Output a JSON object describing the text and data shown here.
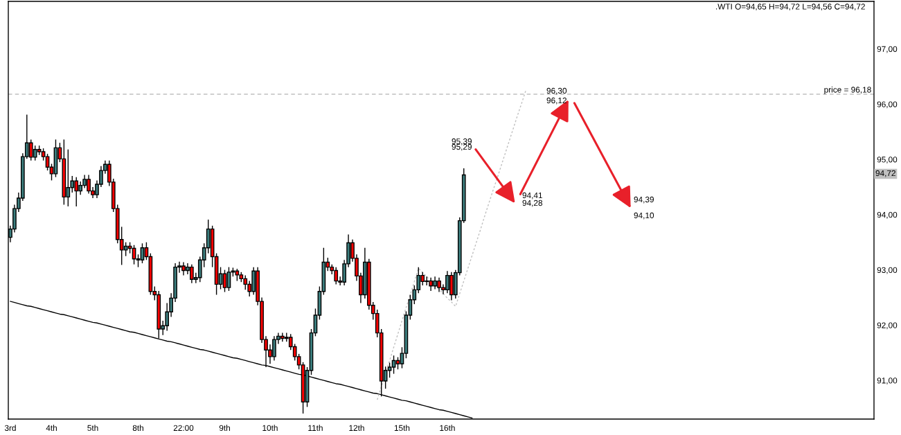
{
  "chart_data": {
    "type": "candlestick",
    "categories": [
      "3rd",
      null,
      null,
      null,
      null,
      null,
      null,
      null,
      null,
      null,
      "4th",
      null,
      null,
      null,
      null,
      null,
      null,
      null,
      null,
      null,
      "5th",
      null,
      null,
      null,
      null,
      null,
      null,
      null,
      null,
      null,
      null,
      "8th",
      null,
      null,
      null,
      null,
      null,
      null,
      null,
      null,
      null,
      null,
      "22:00",
      null,
      null,
      null,
      null,
      null,
      null,
      null,
      null,
      null,
      "9th",
      null,
      null,
      null,
      null,
      null,
      null,
      null,
      null,
      null,
      null,
      "10th",
      null,
      null,
      null,
      null,
      null,
      null,
      null,
      null,
      null,
      null,
      "11th",
      null,
      null,
      null,
      null,
      null,
      null,
      null,
      null,
      null,
      "12th",
      null,
      null,
      null,
      null,
      null,
      null,
      null,
      null,
      null,
      null,
      "15th",
      null,
      null,
      null,
      null,
      null,
      null,
      null,
      null,
      null,
      null,
      "16th",
      null,
      null,
      null,
      null,
      null,
      null,
      null,
      null,
      null,
      null,
      null,
      null,
      null,
      null,
      null,
      null,
      null,
      null,
      null,
      null,
      null,
      null,
      null,
      null,
      null,
      null,
      null,
      null,
      null,
      null,
      null,
      null,
      null,
      null,
      null,
      null,
      null,
      null,
      null,
      null,
      null,
      null,
      null,
      null,
      null,
      null,
      null,
      null,
      null,
      null,
      null,
      null,
      null,
      null,
      null,
      null,
      null,
      null,
      null,
      null,
      null,
      null,
      null,
      null,
      null,
      null,
      null,
      null,
      null,
      null,
      null,
      null,
      null,
      null,
      null,
      null,
      null,
      null,
      null,
      null,
      null,
      null,
      null,
      null,
      null,
      null,
      null,
      null,
      null,
      null,
      null,
      null,
      null,
      null,
      null,
      null,
      null,
      null,
      null,
      null,
      null,
      null,
      null
    ],
    "ohlc": [
      [
        93.59,
        93.8,
        93.5,
        93.74
      ],
      [
        93.74,
        94.18,
        93.68,
        94.11
      ],
      [
        94.11,
        94.4,
        94.05,
        94.3
      ],
      [
        94.3,
        95.11,
        94.25,
        95.05
      ],
      [
        95.05,
        95.81,
        95.01,
        95.3
      ],
      [
        95.3,
        95.36,
        94.98,
        95.04
      ],
      [
        95.04,
        95.25,
        94.98,
        95.18
      ],
      [
        95.18,
        95.25,
        95.08,
        95.14
      ],
      [
        95.14,
        95.2,
        94.98,
        95.05
      ],
      [
        95.05,
        95.1,
        94.8,
        94.86
      ],
      [
        94.86,
        94.92,
        94.62,
        94.74
      ],
      [
        94.74,
        95.36,
        94.68,
        95.21
      ],
      [
        95.21,
        95.3,
        94.95,
        95.01
      ],
      [
        95.01,
        95.36,
        94.18,
        94.32
      ],
      [
        94.32,
        95.18,
        94.15,
        94.49
      ],
      [
        94.49,
        94.7,
        94.4,
        94.61
      ],
      [
        94.61,
        94.68,
        94.15,
        94.43
      ],
      [
        94.43,
        94.6,
        94.36,
        94.53
      ],
      [
        94.53,
        94.72,
        94.48,
        94.64
      ],
      [
        94.64,
        94.72,
        94.38,
        94.43
      ],
      [
        94.43,
        94.5,
        94.3,
        94.36
      ],
      [
        94.36,
        94.62,
        94.3,
        94.55
      ],
      [
        94.55,
        94.88,
        94.5,
        94.8
      ],
      [
        94.8,
        94.98,
        94.74,
        94.91
      ],
      [
        94.91,
        94.98,
        94.52,
        94.59
      ],
      [
        94.59,
        94.65,
        94.05,
        94.11
      ],
      [
        94.11,
        94.18,
        93.48,
        93.55
      ],
      [
        93.55,
        93.78,
        93.09,
        93.36
      ],
      [
        93.36,
        93.5,
        93.25,
        93.43
      ],
      [
        93.43,
        93.5,
        93.3,
        93.39
      ],
      [
        93.39,
        93.45,
        93.1,
        93.2
      ],
      [
        93.2,
        93.28,
        93.05,
        93.18
      ],
      [
        93.18,
        93.48,
        93.12,
        93.4
      ],
      [
        93.4,
        93.5,
        93.18,
        93.24
      ],
      [
        93.24,
        93.3,
        92.55,
        92.61
      ],
      [
        92.61,
        92.7,
        92.45,
        92.55
      ],
      [
        92.55,
        92.62,
        91.76,
        91.93
      ],
      [
        91.93,
        92.08,
        91.82,
        91.99
      ],
      [
        91.99,
        92.4,
        91.9,
        92.24
      ],
      [
        92.24,
        92.58,
        92.15,
        92.49
      ],
      [
        92.49,
        93.12,
        92.42,
        93.05
      ],
      [
        93.05,
        93.15,
        92.95,
        93.07
      ],
      [
        93.07,
        93.14,
        92.9,
        92.99
      ],
      [
        92.99,
        93.12,
        92.92,
        93.05
      ],
      [
        93.05,
        93.1,
        92.76,
        92.83
      ],
      [
        92.83,
        92.95,
        92.76,
        92.86
      ],
      [
        92.86,
        93.24,
        92.78,
        93.18
      ],
      [
        93.18,
        93.48,
        93.05,
        93.4
      ],
      [
        93.4,
        93.91,
        93.3,
        93.74
      ],
      [
        93.74,
        93.8,
        93.05,
        93.24
      ],
      [
        93.24,
        93.3,
        92.55,
        92.74
      ],
      [
        92.74,
        93.05,
        92.65,
        92.93
      ],
      [
        92.93,
        93.0,
        92.6,
        92.68
      ],
      [
        92.68,
        93.05,
        92.62,
        92.96
      ],
      [
        92.96,
        93.04,
        92.88,
        92.98
      ],
      [
        92.98,
        93.02,
        92.8,
        92.91
      ],
      [
        92.91,
        92.96,
        92.78,
        92.84
      ],
      [
        92.84,
        92.9,
        92.64,
        92.74
      ],
      [
        92.74,
        92.8,
        92.52,
        92.61
      ],
      [
        92.61,
        93.05,
        92.55,
        92.98
      ],
      [
        92.98,
        93.05,
        92.36,
        92.43
      ],
      [
        92.43,
        92.5,
        91.68,
        91.74
      ],
      [
        91.74,
        91.8,
        91.24,
        91.55
      ],
      [
        91.55,
        91.65,
        91.3,
        91.43
      ],
      [
        91.43,
        91.8,
        91.36,
        91.74
      ],
      [
        91.74,
        91.86,
        91.66,
        91.8
      ],
      [
        91.8,
        91.86,
        91.7,
        91.76
      ],
      [
        91.76,
        91.86,
        91.7,
        91.78
      ],
      [
        91.78,
        91.84,
        91.55,
        91.61
      ],
      [
        91.61,
        91.66,
        91.36,
        91.43
      ],
      [
        91.43,
        91.48,
        91.2,
        91.28
      ],
      [
        91.28,
        91.33,
        90.4,
        90.61
      ],
      [
        90.61,
        91.24,
        90.52,
        91.18
      ],
      [
        91.18,
        91.93,
        91.1,
        91.86
      ],
      [
        91.86,
        92.3,
        91.8,
        92.18
      ],
      [
        92.18,
        92.7,
        92.1,
        92.61
      ],
      [
        92.61,
        93.4,
        92.55,
        93.14
      ],
      [
        93.14,
        93.22,
        92.98,
        93.05
      ],
      [
        93.05,
        93.1,
        92.92,
        92.99
      ],
      [
        92.99,
        93.05,
        92.74,
        92.8
      ],
      [
        92.8,
        92.88,
        92.72,
        92.78
      ],
      [
        92.78,
        93.18,
        92.72,
        93.11
      ],
      [
        93.11,
        93.64,
        93.05,
        93.49
      ],
      [
        93.49,
        93.55,
        93.15,
        93.21
      ],
      [
        93.21,
        93.28,
        92.8,
        92.89
      ],
      [
        92.89,
        92.95,
        92.4,
        92.55
      ],
      [
        92.55,
        93.4,
        92.48,
        93.14
      ],
      [
        93.14,
        93.2,
        92.28,
        92.36
      ],
      [
        92.36,
        92.42,
        92.1,
        92.21
      ],
      [
        92.21,
        92.28,
        91.78,
        91.86
      ],
      [
        91.86,
        91.93,
        90.71,
        90.99
      ],
      [
        90.99,
        91.25,
        90.85,
        91.18
      ],
      [
        91.18,
        91.32,
        91.05,
        91.24
      ],
      [
        91.24,
        91.45,
        91.12,
        91.36
      ],
      [
        91.36,
        91.42,
        91.2,
        91.3
      ],
      [
        91.3,
        91.6,
        91.22,
        91.49
      ],
      [
        91.49,
        92.25,
        91.4,
        92.18
      ],
      [
        92.18,
        92.55,
        92.1,
        92.46
      ],
      [
        92.46,
        92.72,
        92.38,
        92.64
      ],
      [
        92.64,
        93.05,
        92.58,
        92.9
      ],
      [
        92.9,
        92.96,
        92.72,
        92.79
      ],
      [
        92.79,
        92.88,
        92.72,
        92.8
      ],
      [
        92.8,
        92.86,
        92.62,
        92.71
      ],
      [
        92.71,
        92.88,
        92.65,
        92.8
      ],
      [
        92.8,
        92.86,
        92.6,
        92.68
      ],
      [
        92.68,
        92.74,
        92.56,
        92.64
      ],
      [
        92.64,
        92.98,
        92.58,
        92.9
      ],
      [
        92.9,
        92.96,
        92.45,
        92.55
      ],
      [
        92.55,
        93.0,
        92.48,
        92.95
      ],
      [
        92.95,
        93.95,
        92.9,
        93.89
      ],
      [
        93.89,
        94.84,
        93.85,
        94.72
      ],
      null,
      null,
      null,
      null,
      null,
      null,
      null,
      null,
      null,
      null,
      null,
      null,
      null,
      null,
      null,
      null,
      null,
      null,
      null,
      null,
      null,
      null,
      null,
      null,
      null,
      null,
      null,
      null,
      null,
      null,
      null,
      null,
      null,
      null,
      null,
      null,
      null,
      null,
      null,
      null,
      null,
      null,
      null,
      null,
      null,
      null,
      null,
      null,
      null,
      null,
      null,
      null,
      null,
      null,
      null,
      null,
      null,
      null,
      null,
      null,
      null,
      null,
      null,
      null,
      null,
      null,
      null,
      null,
      null,
      null,
      null,
      null,
      null,
      null,
      null,
      null,
      null,
      null,
      null,
      null,
      null,
      null,
      null,
      null,
      null,
      null,
      null,
      null,
      null,
      null,
      null,
      null,
      null,
      null,
      null,
      null,
      null,
      null,
      null
    ],
    "colors": [
      "#3d7f7f",
      "#3d7f7f",
      "#3d7f7f",
      "#3d7f7f",
      "#3d7f7f",
      "#ff0000",
      "#3d7f7f",
      "#ff0000",
      "#ff0000",
      "#ff0000",
      "#ff0000",
      "#3d7f7f",
      "#ff0000",
      "#ff0000",
      "#3d7f7f",
      "#3d7f7f",
      "#ff0000",
      "#3d7f7f",
      "#3d7f7f",
      "#ff0000",
      "#ff0000",
      "#3d7f7f",
      "#3d7f7f",
      "#3d7f7f",
      "#ff0000",
      "#ff0000",
      "#ff0000",
      "#ff0000",
      "#3d7f7f",
      "#ff0000",
      "#ff0000",
      "#ff0000",
      "#3d7f7f",
      "#ff0000",
      "#ff0000",
      "#ff0000",
      "#ff0000",
      "#3d7f7f",
      "#3d7f7f",
      "#3d7f7f",
      "#3d7f7f",
      "#3d7f7f",
      "#ff0000",
      "#3d7f7f",
      "#ff0000",
      "#3d7f7f",
      "#3d7f7f",
      "#3d7f7f",
      "#3d7f7f",
      "#ff0000",
      "#ff0000",
      "#3d7f7f",
      "#ff0000",
      "#3d7f7f",
      "#3d7f7f",
      "#ff0000",
      "#ff0000",
      "#ff0000",
      "#ff0000",
      "#3d7f7f",
      "#ff0000",
      "#ff0000",
      "#ff0000",
      "#ff0000",
      "#3d7f7f",
      "#3d7f7f",
      "#ff0000",
      "#3d7f7f",
      "#ff0000",
      "#ff0000",
      "#ff0000",
      "#ff0000",
      "#3d7f7f",
      "#3d7f7f",
      "#3d7f7f",
      "#3d7f7f",
      "#3d7f7f",
      "#ff0000",
      "#ff0000",
      "#ff0000",
      "#ff0000",
      "#3d7f7f",
      "#3d7f7f",
      "#ff0000",
      "#ff0000",
      "#ff0000",
      "#3d7f7f",
      "#ff0000",
      "#ff0000",
      "#ff0000",
      "#ff0000",
      "#3d7f7f",
      "#3d7f7f",
      "#3d7f7f",
      "#ff0000",
      "#3d7f7f",
      "#3d7f7f",
      "#3d7f7f",
      "#3d7f7f",
      "#3d7f7f",
      "#ff0000",
      "#3d7f7f",
      "#ff0000",
      "#3d7f7f",
      "#ff0000",
      "#ff0000",
      "#3d7f7f",
      "#ff0000",
      "#3d7f7f",
      "#3d7f7f",
      "#3d7f7f",
      null,
      null,
      null,
      null,
      null,
      null,
      null,
      null,
      null,
      null,
      null,
      null,
      null,
      null,
      null,
      null,
      null,
      null,
      null,
      null,
      null,
      null,
      null,
      null,
      null,
      null,
      null,
      null,
      null,
      null,
      null,
      null,
      null,
      null,
      null,
      null,
      null,
      null,
      null,
      null,
      null,
      null,
      null,
      null,
      null,
      null,
      null,
      null,
      null,
      null,
      null,
      null,
      null,
      null,
      null,
      null,
      null,
      null,
      null,
      null,
      null,
      null,
      null,
      null,
      null,
      null,
      null,
      null,
      null,
      null,
      null,
      null,
      null,
      null,
      null,
      null,
      null,
      null,
      null,
      null,
      null,
      null,
      null,
      null,
      null,
      null,
      null,
      null,
      null,
      null,
      null,
      null,
      null,
      null,
      null,
      null,
      null,
      null,
      null
    ],
    "series": [
      {
        "type": "line",
        "color": "#000000",
        "line_style": "solid",
        "values": [
          92.43,
          92.41,
          92.39,
          92.37,
          92.35,
          92.34,
          92.32,
          92.3,
          92.28,
          92.26,
          92.24,
          92.22,
          92.2,
          92.19,
          92.17,
          92.15,
          92.13,
          92.11,
          92.09,
          92.07,
          92.05,
          92.04,
          92.02,
          92.0,
          91.98,
          91.96,
          91.94,
          91.92,
          91.9,
          91.88,
          91.87,
          91.85,
          91.83,
          91.81,
          91.79,
          91.77,
          91.75,
          91.73,
          91.71,
          91.7,
          91.68,
          91.66,
          91.64,
          91.62,
          91.6,
          91.58,
          91.56,
          91.55,
          91.53,
          91.51,
          91.49,
          91.47,
          91.45,
          91.43,
          91.41,
          91.4,
          91.38,
          91.36,
          91.34,
          91.32,
          91.3,
          91.28,
          91.27,
          91.25,
          91.23,
          91.21,
          91.19,
          91.17,
          91.15,
          91.13,
          91.11,
          91.1,
          91.08,
          91.06,
          91.04,
          91.02,
          91.0,
          90.98,
          90.96,
          90.94,
          90.93,
          90.91,
          90.89,
          90.87,
          90.85,
          90.83,
          90.81,
          90.79,
          90.77,
          90.76,
          90.74,
          90.72,
          90.7,
          90.68,
          90.66,
          90.64,
          90.63,
          90.61,
          90.59,
          90.57,
          90.55,
          90.53,
          90.51,
          90.49,
          90.47,
          90.46,
          90.44,
          90.42,
          90.4,
          90.38,
          90.36,
          90.34,
          90.32,
          null,
          null,
          null,
          null,
          null,
          null,
          null,
          null,
          null,
          null,
          null,
          null,
          null,
          null,
          null,
          null,
          null,
          null,
          null,
          null,
          null,
          null,
          null,
          null,
          null,
          null,
          null,
          null,
          null,
          null,
          null,
          null,
          null,
          null,
          null,
          null,
          null,
          null,
          null,
          null,
          null,
          null,
          null,
          null,
          null,
          null,
          null,
          null,
          null,
          null,
          null,
          null,
          null,
          null,
          null,
          null,
          null,
          null,
          null,
          null,
          null,
          null,
          null,
          null,
          null,
          null,
          null,
          null,
          null,
          null,
          null,
          null,
          null,
          null,
          null,
          null,
          null,
          null,
          null,
          null,
          null,
          null,
          null,
          null,
          null,
          null,
          null,
          null,
          null,
          null,
          null,
          null,
          null,
          null,
          null,
          null,
          null
        ]
      },
      {
        "type": "line",
        "color": "#c0c0c0",
        "line_style": "dotted",
        "values": [
          null,
          null,
          null,
          null,
          null,
          null,
          null,
          null,
          null,
          null,
          null,
          null,
          null,
          null,
          null,
          null,
          null,
          null,
          null,
          null,
          null,
          null,
          null,
          null,
          null,
          null,
          null,
          null,
          null,
          null,
          null,
          null,
          null,
          null,
          null,
          null,
          null,
          null,
          null,
          null,
          null,
          null,
          null,
          null,
          null,
          null,
          null,
          null,
          null,
          null,
          null,
          null,
          null,
          null,
          null,
          null,
          null,
          null,
          null,
          null,
          null,
          null,
          null,
          null,
          null,
          null,
          null,
          null,
          null,
          null,
          null,
          null,
          null,
          null,
          null,
          null,
          null,
          null,
          null,
          null,
          null,
          null,
          null,
          null,
          null,
          null,
          null,
          null,
          null,
          90.65,
          90.89,
          91.13,
          91.36,
          91.6,
          91.84,
          92.08,
          92.32,
          92.55,
          92.79,
          93.03,
          92.95,
          92.88,
          92.8,
          92.72,
          92.65,
          92.57,
          92.49,
          92.42,
          92.34,
          92.57,
          92.8,
          93.03,
          93.26,
          93.49,
          93.72,
          93.96,
          94.19,
          94.42,
          94.64,
          94.87,
          95.1,
          95.33,
          95.56,
          95.79,
          96.01,
          96.24,
          null,
          null,
          null,
          null,
          null,
          null,
          null,
          null,
          null,
          null,
          null,
          null,
          null,
          null,
          null,
          null,
          null,
          null,
          null,
          null,
          null,
          null,
          null,
          null,
          null,
          null,
          null,
          null,
          null,
          null,
          null,
          null,
          null,
          null,
          null,
          null,
          null,
          null,
          null,
          null,
          null,
          null,
          null,
          null,
          null,
          null,
          null,
          null,
          null,
          null,
          null,
          null,
          null,
          null,
          null,
          null,
          null,
          null,
          null,
          null,
          null,
          null,
          null,
          null,
          null,
          null,
          null,
          null,
          null,
          null,
          null,
          null,
          null,
          null,
          null,
          null,
          null,
          null,
          null,
          null,
          null,
          null,
          null,
          null
        ]
      }
    ],
    "ylim": [
      90.3,
      97.86
    ],
    "yticks": [
      {
        "value": 91,
        "label": "91,00"
      },
      {
        "value": 92,
        "label": "92,00"
      },
      {
        "value": 93,
        "label": "93,00"
      },
      {
        "value": 94,
        "label": "94,00"
      },
      {
        "value": 95,
        "label": "95,00"
      },
      {
        "value": 96,
        "label": "96,00"
      },
      {
        "value": 97,
        "label": "97,00"
      }
    ],
    "ref_lines": [
      {
        "axis": "y",
        "value": 96.18,
        "label": "price = 96,18",
        "color": "#c0c0c0",
        "line_style": "dashed"
      }
    ],
    "annotations": [
      ".WTI O=94,65 H=94,72 L=94,56 C=94,72",
      "95,39",
      "95,29",
      "94,41",
      "94,28",
      "96,30",
      "96,12",
      "94,39",
      "94,10",
      "94,72"
    ],
    "grid": false,
    "legend": false
  }
}
